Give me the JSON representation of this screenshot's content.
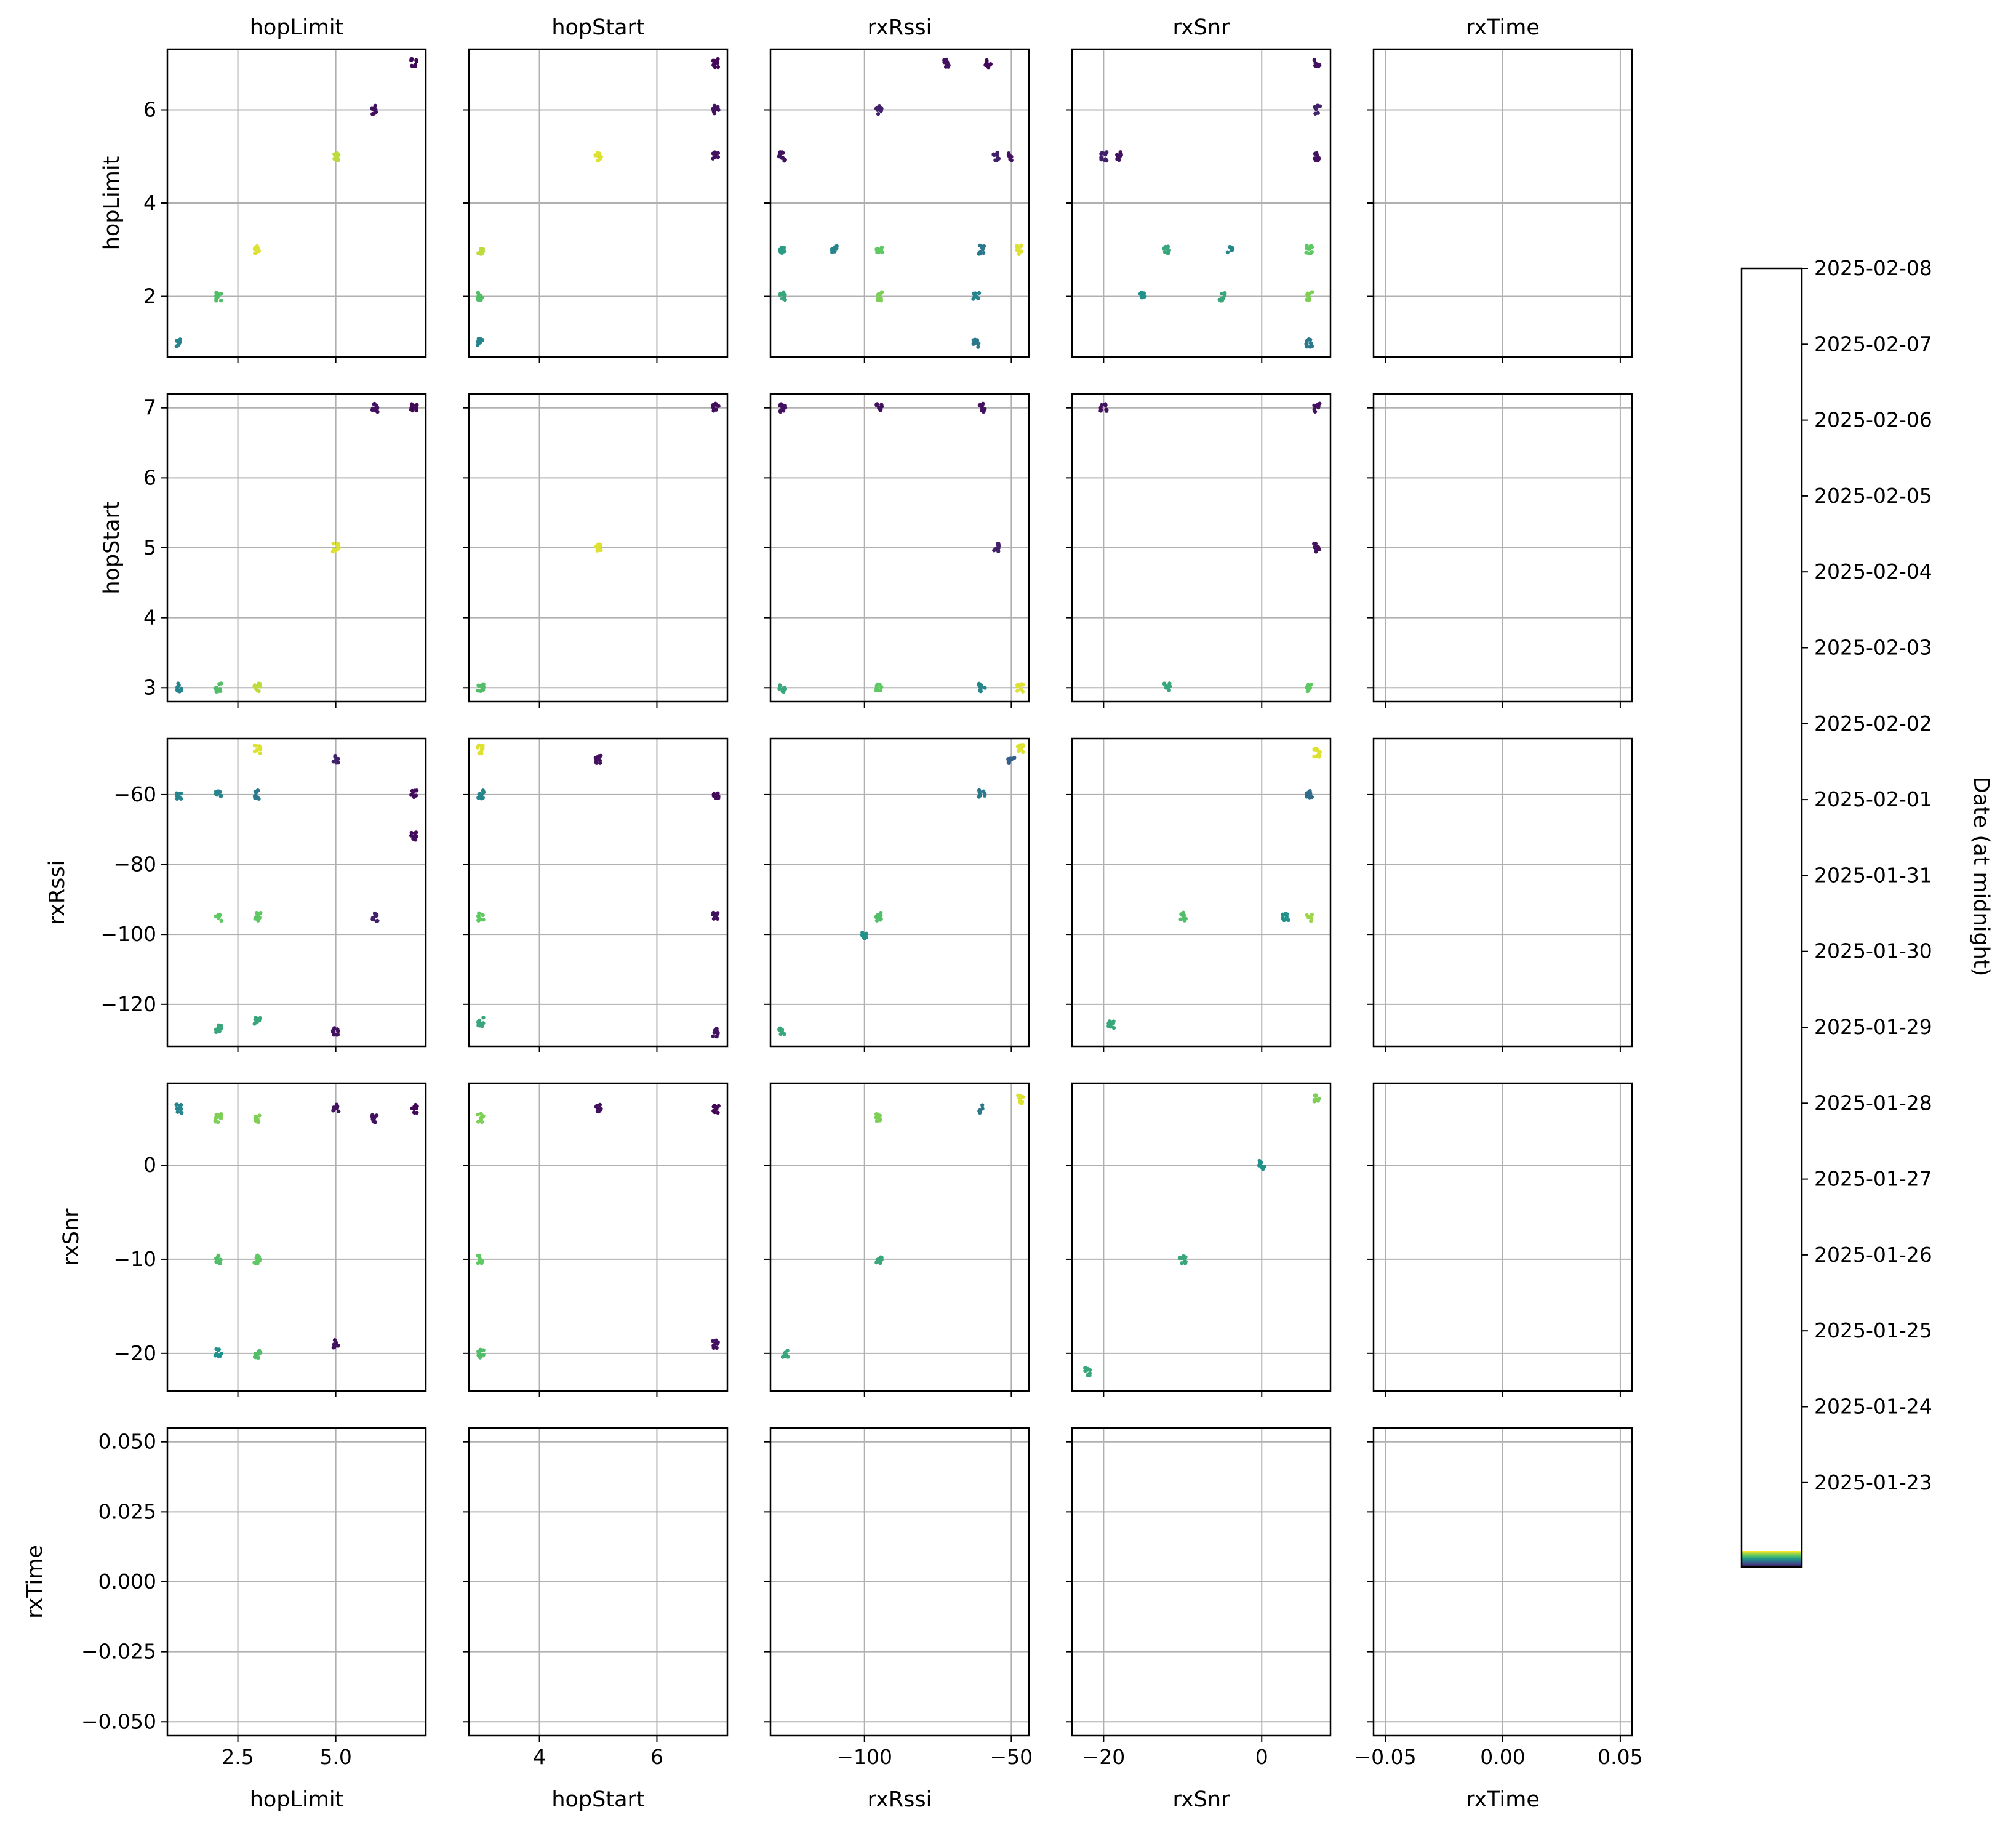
{
  "chart_data": {
    "type": "scatter",
    "variables": [
      "hopLimit",
      "hopStart",
      "rxRssi",
      "rxSnr",
      "rxTime"
    ],
    "axis_ranges": {
      "hopLimit": [
        0.7,
        7.3
      ],
      "hopStart": [
        2.8,
        7.2
      ],
      "rxRssi": [
        -132,
        -44
      ],
      "rxSnr": [
        -24,
        8.7
      ],
      "rxTime": [
        -0.055,
        0.055
      ]
    },
    "axis_ticks": {
      "hopLimit": {
        "row": {
          "values": [
            2,
            4,
            6
          ],
          "labels": [
            "2",
            "4",
            "6"
          ]
        },
        "col": {
          "values": [
            2.5,
            5.0
          ],
          "labels": [
            "2.5",
            "5.0"
          ]
        }
      },
      "hopStart": {
        "row": {
          "values": [
            3,
            4,
            5,
            6,
            7
          ],
          "labels": [
            "3",
            "4",
            "5",
            "6",
            "7"
          ]
        },
        "col": {
          "values": [
            4,
            6
          ],
          "labels": [
            "4",
            "6"
          ]
        }
      },
      "rxRssi": {
        "row": {
          "values": [
            -60,
            -80,
            -100,
            -120
          ],
          "labels": [
            "−60",
            "−80",
            "−100",
            "−120"
          ]
        },
        "col": {
          "values": [
            -100,
            -50
          ],
          "labels": [
            "−100",
            "−50"
          ]
        }
      },
      "rxSnr": {
        "row": {
          "values": [
            0,
            -10,
            -20
          ],
          "labels": [
            "0",
            "−10",
            "−20"
          ]
        },
        "col": {
          "values": [
            -20,
            0
          ],
          "labels": [
            "−20",
            "0"
          ]
        }
      },
      "rxTime": {
        "row": {
          "values": [
            0.05,
            0.025,
            0,
            -0.025,
            -0.05
          ],
          "labels": [
            "0.050",
            "0.025",
            "0.000",
            "−0.025",
            "−0.050"
          ]
        },
        "col": {
          "values": [
            -0.05,
            0,
            0.05
          ],
          "labels": [
            "−0.05",
            "0.00",
            "0.05"
          ]
        }
      }
    },
    "grid": true,
    "colorbar": {
      "label": "Date (at midnight)",
      "ticks": [
        "2025-02-08",
        "2025-02-07",
        "2025-02-06",
        "2025-02-05",
        "2025-02-04",
        "2025-02-03",
        "2025-02-02",
        "2025-02-01",
        "2025-01-31",
        "2025-01-30",
        "2025-01-29",
        "2025-01-28",
        "2025-01-27",
        "2025-01-26",
        "2025-01-25",
        "2025-01-24",
        "2025-01-23"
      ],
      "colormap": [
        "#440154",
        "#3b528b",
        "#21918c",
        "#5ec962",
        "#fde725"
      ]
    },
    "panels": [
      {
        "row": "hopLimit",
        "col": "hopLimit",
        "points": [
          [
            1,
            1,
            0.45
          ],
          [
            2,
            2,
            0.7
          ],
          [
            3,
            3,
            0.95
          ],
          [
            5,
            5,
            0.9
          ],
          [
            6,
            6,
            0.05
          ],
          [
            7,
            7,
            0.02
          ]
        ]
      },
      {
        "row": "hopLimit",
        "col": "hopStart",
        "points": [
          [
            3,
            1,
            0.45
          ],
          [
            3,
            2,
            0.7
          ],
          [
            3,
            3,
            0.9
          ],
          [
            5,
            5,
            0.95
          ],
          [
            7,
            6,
            0.05
          ],
          [
            7,
            5,
            0.05
          ],
          [
            7,
            7,
            0.02
          ]
        ]
      },
      {
        "row": "hopLimit",
        "col": "rxRssi",
        "points": [
          [
            -58,
            7,
            0.02
          ],
          [
            -72,
            7,
            0.05
          ],
          [
            -95,
            6,
            0.1
          ],
          [
            -128,
            5,
            0.05
          ],
          [
            -55,
            5,
            0.1
          ],
          [
            -50,
            5,
            0.05
          ],
          [
            -128,
            3,
            0.55
          ],
          [
            -110,
            3,
            0.45
          ],
          [
            -95,
            3,
            0.75
          ],
          [
            -60,
            3,
            0.4
          ],
          [
            -47,
            3,
            0.95
          ],
          [
            -128,
            2,
            0.6
          ],
          [
            -95,
            2,
            0.8
          ],
          [
            -62,
            2,
            0.45
          ],
          [
            -62,
            1,
            0.4
          ]
        ]
      },
      {
        "row": "hopLimit",
        "col": "rxSnr",
        "points": [
          [
            7,
            7,
            0.05
          ],
          [
            -20,
            5,
            0.1
          ],
          [
            -18,
            5,
            0.05
          ],
          [
            7,
            6,
            0.1
          ],
          [
            7,
            5,
            0.05
          ],
          [
            -12,
            3,
            0.6
          ],
          [
            -4,
            3,
            0.45
          ],
          [
            6,
            3,
            0.75
          ],
          [
            -15,
            2,
            0.5
          ],
          [
            -5,
            2,
            0.6
          ],
          [
            6,
            2,
            0.8
          ],
          [
            6,
            1,
            0.4
          ]
        ]
      },
      {
        "row": "hopStart",
        "col": "hopLimit",
        "points": [
          [
            1,
            3,
            0.45
          ],
          [
            2,
            3,
            0.7
          ],
          [
            3,
            3,
            0.9
          ],
          [
            5,
            5,
            0.95
          ],
          [
            6,
            7,
            0.05
          ],
          [
            7,
            7,
            0.02
          ]
        ]
      },
      {
        "row": "hopStart",
        "col": "hopStart",
        "points": [
          [
            3,
            3,
            0.7
          ],
          [
            5,
            5,
            0.95
          ],
          [
            7,
            7,
            0.03
          ]
        ]
      },
      {
        "row": "hopStart",
        "col": "rxRssi",
        "points": [
          [
            -128,
            7,
            0.05
          ],
          [
            -95,
            7,
            0.05
          ],
          [
            -60,
            7,
            0.05
          ],
          [
            -55,
            5,
            0.1
          ],
          [
            -128,
            3,
            0.6
          ],
          [
            -95,
            3,
            0.75
          ],
          [
            -60,
            3,
            0.45
          ],
          [
            -47,
            3,
            0.95
          ]
        ]
      },
      {
        "row": "hopStart",
        "col": "rxSnr",
        "points": [
          [
            -20,
            7,
            0.05
          ],
          [
            7,
            7,
            0.05
          ],
          [
            7,
            5,
            0.05
          ],
          [
            -12,
            3,
            0.6
          ],
          [
            6,
            3,
            0.75
          ]
        ]
      },
      {
        "row": "rxRssi",
        "col": "hopLimit",
        "points": [
          [
            1,
            -60,
            0.45
          ],
          [
            2,
            -60,
            0.45
          ],
          [
            2,
            -95,
            0.75
          ],
          [
            2,
            -127,
            0.6
          ],
          [
            3,
            -60,
            0.4
          ],
          [
            3,
            -95,
            0.75
          ],
          [
            3,
            -125,
            0.6
          ],
          [
            3,
            -47,
            0.95
          ],
          [
            5,
            -50,
            0.1
          ],
          [
            5,
            -128,
            0.05
          ],
          [
            6,
            -95,
            0.1
          ],
          [
            7,
            -60,
            0.03
          ],
          [
            7,
            -72,
            0.03
          ]
        ]
      },
      {
        "row": "rxRssi",
        "col": "hopStart",
        "points": [
          [
            3,
            -60,
            0.45
          ],
          [
            3,
            -95,
            0.75
          ],
          [
            3,
            -125,
            0.6
          ],
          [
            3,
            -47,
            0.95
          ],
          [
            5,
            -50,
            0.05
          ],
          [
            7,
            -60,
            0.03
          ],
          [
            7,
            -95,
            0.05
          ],
          [
            7,
            -128,
            0.05
          ]
        ]
      },
      {
        "row": "rxRssi",
        "col": "rxRssi",
        "points": [
          [
            -128,
            -128,
            0.6
          ],
          [
            -100,
            -100,
            0.5
          ],
          [
            -95,
            -95,
            0.7
          ],
          [
            -60,
            -60,
            0.4
          ],
          [
            -50,
            -50,
            0.3
          ],
          [
            -47,
            -47,
            0.95
          ]
        ]
      },
      {
        "row": "rxRssi",
        "col": "rxSnr",
        "points": [
          [
            -19,
            -126,
            0.6
          ],
          [
            -10,
            -95,
            0.7
          ],
          [
            3,
            -95,
            0.5
          ],
          [
            6,
            -95,
            0.85
          ],
          [
            6,
            -60,
            0.35
          ],
          [
            7,
            -48,
            0.95
          ]
        ]
      },
      {
        "row": "rxSnr",
        "col": "hopLimit",
        "points": [
          [
            1,
            6,
            0.45
          ],
          [
            2,
            5,
            0.8
          ],
          [
            2,
            -10,
            0.7
          ],
          [
            2,
            -20,
            0.5
          ],
          [
            3,
            5,
            0.8
          ],
          [
            3,
            -10,
            0.75
          ],
          [
            3,
            -20,
            0.7
          ],
          [
            5,
            6,
            0.05
          ],
          [
            5,
            -19,
            0.05
          ],
          [
            6,
            5,
            0.05
          ],
          [
            7,
            6,
            0.02
          ]
        ]
      },
      {
        "row": "rxSnr",
        "col": "hopStart",
        "points": [
          [
            3,
            5,
            0.8
          ],
          [
            3,
            -10,
            0.75
          ],
          [
            3,
            -20,
            0.7
          ],
          [
            5,
            6,
            0.05
          ],
          [
            7,
            6,
            0.02
          ],
          [
            7,
            -19,
            0.05
          ]
        ]
      },
      {
        "row": "rxSnr",
        "col": "rxRssi",
        "points": [
          [
            -127,
            -20,
            0.6
          ],
          [
            -95,
            5,
            0.8
          ],
          [
            -95,
            -10,
            0.6
          ],
          [
            -60,
            6,
            0.4
          ],
          [
            -47,
            7,
            0.95
          ]
        ]
      },
      {
        "row": "rxSnr",
        "col": "rxSnr",
        "points": [
          [
            -22,
            -22,
            0.6
          ],
          [
            -10,
            -10,
            0.6
          ],
          [
            0,
            0,
            0.5
          ],
          [
            7,
            7,
            0.8
          ]
        ]
      },
      {
        "row": "rxSnr",
        "col": "rxTime",
        "points": []
      },
      {
        "row": "rxTime",
        "col": "hopLimit",
        "points": []
      }
    ]
  }
}
